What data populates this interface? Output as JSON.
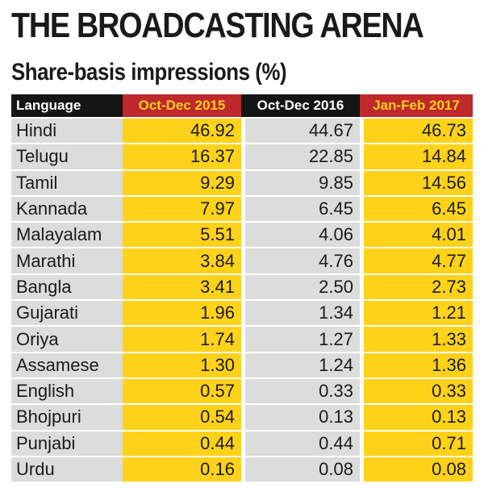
{
  "title": "THE BROADCASTING ARENA",
  "subtitle": "Share-basis impressions (%)",
  "colors": {
    "header_black": "#151515",
    "header_red": "#c0282b",
    "highlight_yellow": "#ffd21a",
    "row_grey": "#dcdcda"
  },
  "chart_data": {
    "type": "table",
    "title": "THE BROADCASTING ARENA",
    "subtitle": "Share-basis impressions (%)",
    "columns": [
      "Language",
      "Oct-Dec 2015",
      "Oct-Dec 2016",
      "Jan-Feb 2017"
    ],
    "rows": [
      [
        "Hindi",
        "46.92",
        "44.67",
        "46.73"
      ],
      [
        "Telugu",
        "16.37",
        "22.85",
        "14.84"
      ],
      [
        "Tamil",
        "9.29",
        "9.85",
        "14.56"
      ],
      [
        "Kannada",
        "7.97",
        "6.45",
        "6.45"
      ],
      [
        "Malayalam",
        "5.51",
        "4.06",
        "4.01"
      ],
      [
        "Marathi",
        "3.84",
        "4.76",
        "4.77"
      ],
      [
        "Bangla",
        "3.41",
        "2.50",
        "2.73"
      ],
      [
        "Gujarati",
        "1.96",
        "1.34",
        "1.21"
      ],
      [
        "Oriya",
        "1.74",
        "1.27",
        "1.33"
      ],
      [
        "Assamese",
        "1.30",
        "1.24",
        "1.36"
      ],
      [
        "English",
        "0.57",
        "0.33",
        "0.33"
      ],
      [
        "Bhojpuri",
        "0.54",
        "0.13",
        "0.13"
      ],
      [
        "Punjabi",
        "0.44",
        "0.44",
        "0.71"
      ],
      [
        "Urdu",
        "0.16",
        "0.08",
        "0.08"
      ]
    ]
  }
}
